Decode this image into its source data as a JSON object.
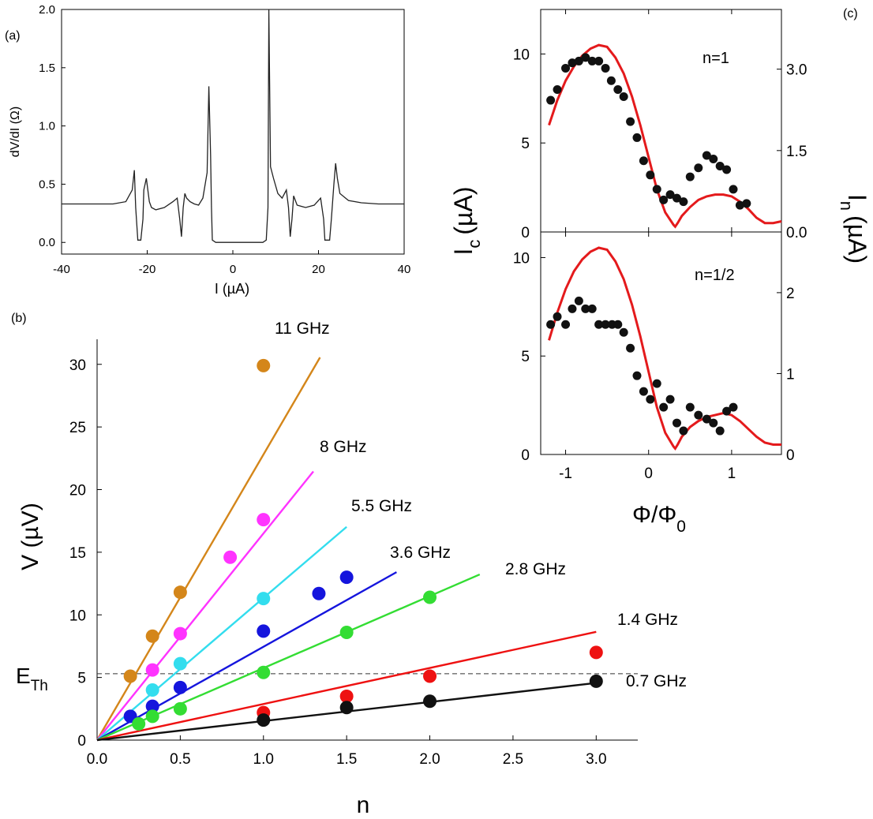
{
  "chart_data": [
    {
      "panel": "(a)",
      "type": "line",
      "xlabel": "I (µA)",
      "ylabel": "dV/dI (Ω)",
      "xlim": [
        -40,
        40
      ],
      "ylim": [
        -0.1,
        2.0
      ],
      "xticks": [
        -40,
        -20,
        0,
        20,
        40
      ],
      "yticks": [
        0.0,
        0.5,
        1.0,
        1.5,
        2.0
      ],
      "xtick_labels": [
        "-40",
        "-20",
        "0",
        "20",
        "40"
      ],
      "ytick_labels": [
        "0.0",
        "0.5",
        "1.0",
        "1.5",
        "2.0"
      ],
      "x": [
        -40,
        -36,
        -32,
        -28,
        -25,
        -23.5,
        -23,
        -22.7,
        -22.2,
        -21.5,
        -21,
        -20.8,
        -20.2,
        -19.5,
        -19,
        -18,
        -16,
        -14,
        -13,
        -12.4,
        -12,
        -11.6,
        -11.2,
        -10.8,
        -10,
        -9,
        -8,
        -7,
        -6,
        -5.6,
        -5.2,
        -5,
        -4.8,
        -4,
        0,
        4,
        7,
        7.8,
        8.2,
        8.4,
        8.8,
        9.5,
        10.5,
        11.5,
        12.5,
        13,
        13.4,
        13.8,
        14.2,
        15,
        17,
        19,
        20.5,
        21.2,
        21.5,
        22,
        22.6,
        23,
        23.6,
        24,
        24.4,
        25,
        27,
        30,
        34,
        40
      ],
      "y": [
        0.33,
        0.33,
        0.33,
        0.33,
        0.35,
        0.45,
        0.62,
        0.3,
        0.02,
        0.02,
        0.2,
        0.45,
        0.55,
        0.35,
        0.3,
        0.28,
        0.3,
        0.35,
        0.38,
        0.2,
        0.05,
        0.3,
        0.42,
        0.38,
        0.35,
        0.33,
        0.32,
        0.38,
        0.6,
        1.34,
        0.75,
        0.3,
        0.02,
        0.0,
        0.0,
        0.0,
        0.0,
        0.02,
        0.3,
        2.0,
        0.65,
        0.55,
        0.42,
        0.38,
        0.45,
        0.3,
        0.05,
        0.2,
        0.4,
        0.32,
        0.3,
        0.32,
        0.38,
        0.2,
        0.02,
        0.02,
        0.02,
        0.2,
        0.5,
        0.68,
        0.55,
        0.42,
        0.36,
        0.34,
        0.33,
        0.33
      ]
    },
    {
      "panel": "(b)",
      "type": "scatter",
      "xlabel": "n",
      "ylabel": "V (µV)",
      "xlim": [
        0,
        3.25
      ],
      "ylim": [
        0,
        32
      ],
      "xticks": [
        0.0,
        0.5,
        1.0,
        1.5,
        2.0,
        2.5,
        3.0
      ],
      "yticks": [
        0,
        5,
        10,
        15,
        20,
        25,
        30
      ],
      "xtick_labels": [
        "0.0",
        "0.5",
        "1.0",
        "1.5",
        "2.0",
        "2.5",
        "3.0"
      ],
      "ytick_labels": [
        "0",
        "5",
        "10",
        "15",
        "20",
        "25",
        "30"
      ],
      "threshold_label": "E",
      "threshold_sub": "Th",
      "threshold_value": 5.3,
      "series": [
        {
          "name": "11 GHz",
          "color": "#d4861a",
          "slope": 22.8,
          "line_xmax": 1.34,
          "x": [
            0.2,
            0.333,
            0.5,
            1.0
          ],
          "y": [
            5.1,
            8.3,
            11.8,
            29.9
          ]
        },
        {
          "name": "8 GHz",
          "color": "#ff33ff",
          "slope": 16.5,
          "line_xmax": 1.3,
          "x": [
            0.333,
            0.5,
            0.8,
            1.0
          ],
          "y": [
            5.6,
            8.5,
            14.6,
            17.6
          ]
        },
        {
          "name": "5.5 GHz",
          "color": "#33ddee",
          "slope": 11.35,
          "line_xmax": 1.5,
          "x": [
            0.333,
            0.5,
            1.0
          ],
          "y": [
            4.0,
            6.1,
            11.3
          ]
        },
        {
          "name": "3.6 GHz",
          "color": "#1515dd",
          "slope": 7.45,
          "line_xmax": 1.8,
          "x": [
            0.2,
            0.333,
            0.5,
            1.0,
            1.333,
            1.5
          ],
          "y": [
            1.9,
            2.7,
            4.2,
            8.7,
            11.7,
            13.0
          ]
        },
        {
          "name": "2.8 GHz",
          "color": "#33dd33",
          "slope": 5.75,
          "line_xmax": 2.3,
          "x": [
            0.25,
            0.333,
            0.5,
            1.0,
            1.5,
            2.0
          ],
          "y": [
            1.3,
            1.9,
            2.5,
            5.4,
            8.6,
            11.4
          ]
        },
        {
          "name": "1.4 GHz",
          "color": "#ee1111",
          "slope": 2.88,
          "line_xmax": 3.0,
          "x": [
            1.0,
            1.5,
            2.0,
            3.0
          ],
          "y": [
            2.2,
            3.5,
            5.1,
            7.0
          ]
        },
        {
          "name": "0.7 GHz",
          "color": "#111111",
          "slope": 1.52,
          "line_xmax": 3.0,
          "x": [
            1.0,
            1.5,
            2.0,
            3.0
          ],
          "y": [
            1.6,
            2.6,
            3.1,
            4.7
          ]
        }
      ]
    },
    {
      "panel": "(c)",
      "type": "scatter",
      "xlabel": "Φ/Φ",
      "xlabel_sub": "0",
      "ylabel_left": "I",
      "ylabel_left_sub": "c",
      "ylabel_left_unit": "(µA)",
      "ylabel_right": "I",
      "ylabel_right_sub": "n",
      "ylabel_right_unit": "(µA)",
      "xlim": [
        -1.3,
        1.6
      ],
      "xticks": [
        -1,
        0,
        1
      ],
      "xtick_labels": [
        "-1",
        "0",
        "1"
      ],
      "subplots": [
        {
          "label": "n=1",
          "ylim_left": [
            0,
            12.5
          ],
          "yticks_left": [
            0,
            5,
            10
          ],
          "ytick_labels_left": [
            "0",
            "5",
            "10"
          ],
          "ylim_right": [
            0,
            4.1
          ],
          "yticks_right": [
            0.0,
            1.5,
            3.0
          ],
          "ytick_labels_right": [
            "0.0",
            "1.5",
            "3.0"
          ],
          "points_x": [
            -1.18,
            -1.1,
            -1.0,
            -0.92,
            -0.84,
            -0.76,
            -0.68,
            -0.6,
            -0.52,
            -0.45,
            -0.37,
            -0.3,
            -0.22,
            -0.14,
            -0.06,
            0.02,
            0.1,
            0.18,
            0.26,
            0.34,
            0.42,
            0.5,
            0.6,
            0.7,
            0.78,
            0.86,
            0.94,
            1.02,
            1.1,
            1.18
          ],
          "points_y": [
            7.4,
            8.0,
            9.2,
            9.5,
            9.6,
            9.8,
            9.6,
            9.6,
            9.2,
            8.5,
            8.0,
            7.6,
            6.2,
            5.3,
            4.0,
            3.2,
            2.4,
            1.8,
            2.1,
            1.9,
            1.7,
            3.1,
            3.6,
            4.3,
            4.1,
            3.7,
            3.5,
            2.4,
            1.5,
            1.6
          ],
          "curve_x": [
            -1.2,
            -1.1,
            -1.0,
            -0.9,
            -0.8,
            -0.7,
            -0.6,
            -0.5,
            -0.4,
            -0.3,
            -0.2,
            -0.1,
            0.0,
            0.1,
            0.2,
            0.3,
            0.32,
            0.35,
            0.4,
            0.5,
            0.6,
            0.7,
            0.8,
            0.9,
            1.0,
            1.1,
            1.2,
            1.3,
            1.4,
            1.5,
            1.6
          ],
          "curve_y": [
            6.0,
            7.4,
            8.5,
            9.3,
            9.9,
            10.3,
            10.5,
            10.4,
            9.8,
            8.9,
            7.6,
            6.0,
            4.2,
            2.4,
            1.1,
            0.4,
            0.3,
            0.5,
            0.9,
            1.4,
            1.8,
            2.0,
            2.1,
            2.1,
            2.0,
            1.7,
            1.3,
            0.8,
            0.5,
            0.5,
            0.6
          ]
        },
        {
          "label": "n=1/2",
          "ylim_left": [
            0,
            11.3
          ],
          "yticks_left": [
            0,
            5,
            10
          ],
          "ytick_labels_left": [
            "0",
            "5",
            "10"
          ],
          "ylim_right": [
            0,
            2.75
          ],
          "yticks_right": [
            0,
            1,
            2
          ],
          "ytick_labels_right": [
            "0",
            "1",
            "2"
          ],
          "points_x": [
            -1.18,
            -1.1,
            -1.0,
            -0.92,
            -0.84,
            -0.76,
            -0.68,
            -0.6,
            -0.52,
            -0.44,
            -0.37,
            -0.3,
            -0.22,
            -0.14,
            -0.06,
            0.02,
            0.1,
            0.18,
            0.26,
            0.34,
            0.42,
            0.5,
            0.6,
            0.7,
            0.78,
            0.86,
            0.94,
            1.02
          ],
          "points_y": [
            6.6,
            7.0,
            6.6,
            7.4,
            7.8,
            7.4,
            7.4,
            6.6,
            6.6,
            6.6,
            6.6,
            6.2,
            5.4,
            4.0,
            3.2,
            2.8,
            3.6,
            2.4,
            2.8,
            1.6,
            1.2,
            2.4,
            2.0,
            1.8,
            1.6,
            1.2,
            2.2,
            2.4
          ],
          "curve_x": [
            -1.2,
            -1.1,
            -1.0,
            -0.9,
            -0.8,
            -0.7,
            -0.6,
            -0.5,
            -0.4,
            -0.3,
            -0.2,
            -0.1,
            0.0,
            0.1,
            0.2,
            0.3,
            0.32,
            0.35,
            0.4,
            0.5,
            0.6,
            0.7,
            0.8,
            0.9,
            1.0,
            1.1,
            1.2,
            1.3,
            1.4,
            1.5,
            1.6
          ],
          "curve_y": [
            5.8,
            7.2,
            8.4,
            9.3,
            9.9,
            10.3,
            10.5,
            10.4,
            9.8,
            8.9,
            7.6,
            6.0,
            4.2,
            2.4,
            1.1,
            0.4,
            0.3,
            0.5,
            0.9,
            1.4,
            1.7,
            1.9,
            2.0,
            2.1,
            2.0,
            1.7,
            1.3,
            0.9,
            0.6,
            0.5,
            0.5
          ]
        }
      ]
    }
  ]
}
